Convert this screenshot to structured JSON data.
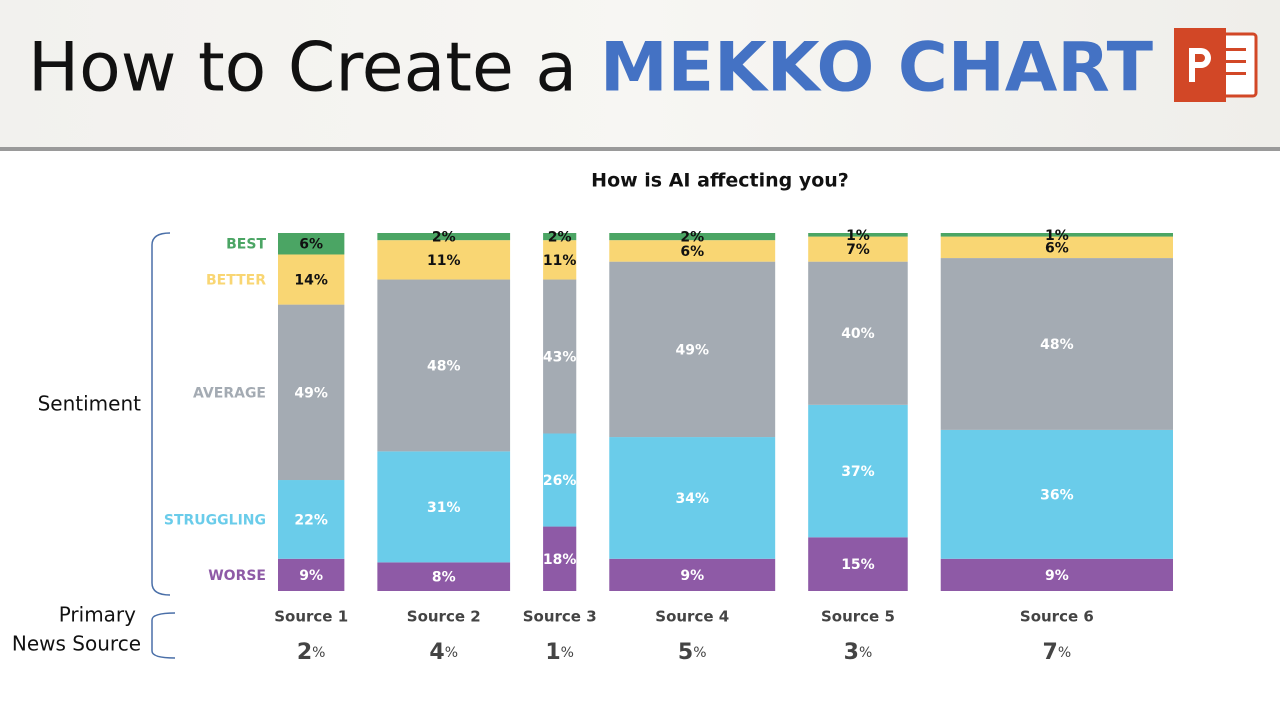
{
  "header": {
    "title_lead": "How to Create a",
    "title_emphasis": "MEKKO CHART"
  },
  "chart_data": {
    "type": "mekko",
    "title": "How is  AI affecting you?",
    "y_label": "Sentiment",
    "x_label_lines": [
      "Primary",
      "News Source"
    ],
    "categories": [
      "Source 1",
      "Source 2",
      "Source 3",
      "Source 4",
      "Source 5",
      "Source 6"
    ],
    "widths": [
      2,
      4,
      1,
      5,
      3,
      7
    ],
    "width_unit": "%",
    "ylim": [
      0,
      100
    ],
    "series": [
      {
        "name": "WORSE",
        "color": "#8e5aa6",
        "values": [
          9,
          8,
          18,
          9,
          15,
          9
        ],
        "value_labels": [
          "9%",
          "8%",
          "18%",
          "9%",
          "15%",
          "9%"
        ]
      },
      {
        "name": "STRUGGLING",
        "color": "#6accea",
        "values": [
          22,
          31,
          26,
          34,
          37,
          36
        ],
        "value_labels": [
          "22%",
          "31%",
          "26%",
          "34%",
          "37%",
          "36%"
        ]
      },
      {
        "name": "AVERAGE",
        "color": "#a4abb3",
        "values": [
          49,
          48,
          43,
          49,
          40,
          48
        ],
        "value_labels": [
          "49%",
          "48%",
          "43%",
          "49%",
          "40%",
          "48%"
        ]
      },
      {
        "name": "BETTER",
        "color": "#f9d673",
        "values": [
          14,
          11,
          11,
          6,
          7,
          6
        ],
        "value_labels": [
          "14%",
          "11%",
          "11%",
          "6%",
          "7%",
          "6%"
        ]
      },
      {
        "name": "BEST",
        "color": "#4ba564",
        "values": [
          6,
          2,
          2,
          2,
          1,
          1
        ],
        "value_labels": [
          "6%",
          "2%",
          "2%",
          "2%",
          "1%",
          "1%"
        ]
      }
    ]
  }
}
